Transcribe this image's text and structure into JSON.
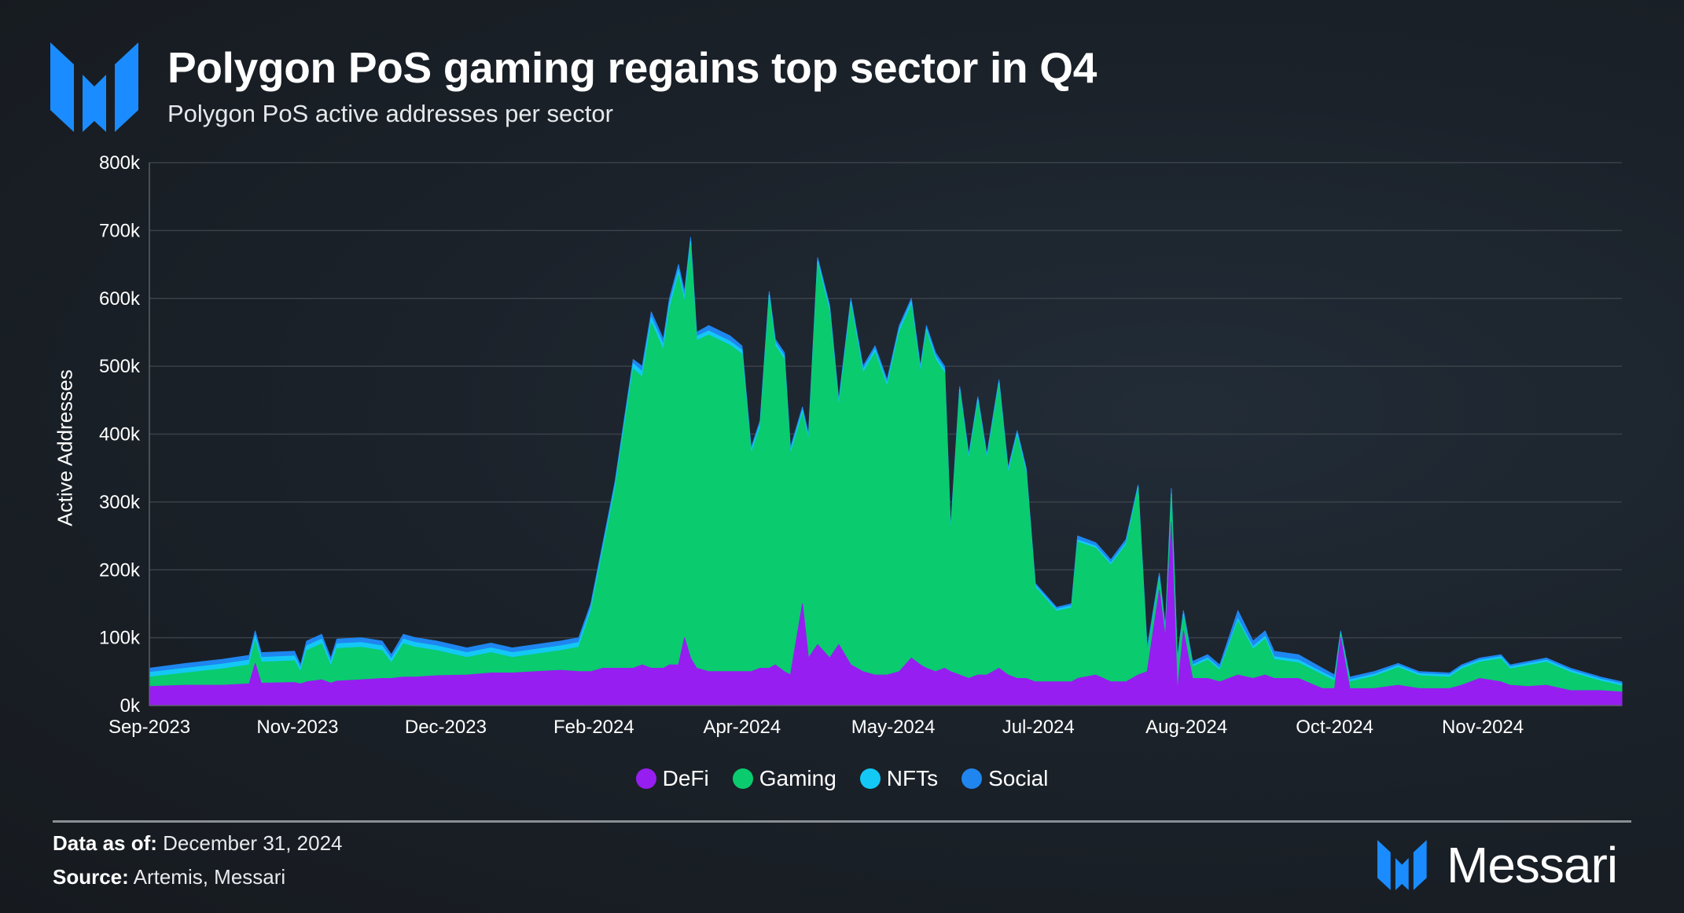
{
  "header": {
    "title": "Polygon PoS gaming regains top sector in Q4",
    "subtitle": "Polygon PoS active addresses per sector",
    "logo_icon": "messari-m-logo",
    "brand_color": "#1a8cff"
  },
  "chart_data": {
    "type": "area",
    "stacked": true,
    "title": "Polygon PoS gaming regains top sector in Q4",
    "subtitle": "Polygon PoS active addresses per sector",
    "xlabel": "",
    "ylabel": "Active Addresses",
    "ylim": [
      0,
      800
    ],
    "yticks": [
      0,
      100,
      200,
      300,
      400,
      500,
      600,
      700,
      800
    ],
    "ytick_labels": [
      "0k",
      "100k",
      "200k",
      "300k",
      "400k",
      "500k",
      "600k",
      "700k",
      "800k"
    ],
    "xlim": [
      "2023-09-01",
      "2024-12-31"
    ],
    "xticks": [
      "2023-09-01",
      "2023-10-20",
      "2023-12-08",
      "2024-01-26",
      "2024-03-15",
      "2024-05-04",
      "2024-06-21",
      "2024-08-09",
      "2024-09-27",
      "2024-11-15"
    ],
    "xtick_labels": [
      "Sep-2023",
      "Nov-2023",
      "Dec-2023",
      "Feb-2024",
      "Apr-2024",
      "May-2024",
      "Jul-2024",
      "Aug-2024",
      "Oct-2024",
      "Nov-2024"
    ],
    "grid": true,
    "legend": "bottom",
    "series_order": [
      "DeFi",
      "Gaming",
      "NFTs",
      "Social"
    ],
    "colors": {
      "DeFi": "#961ef0",
      "Gaming": "#0acb6e",
      "NFTs": "#14c8f5",
      "Social": "#1f86f0"
    },
    "columns": [
      "date",
      "DeFi",
      "Gaming",
      "NFTs",
      "Social"
    ],
    "rows": [
      [
        "2023-09-01",
        28,
        14,
        7,
        6
      ],
      [
        "2023-09-13",
        30,
        18,
        7,
        7
      ],
      [
        "2023-09-25",
        30,
        24,
        7,
        7
      ],
      [
        "2023-10-04",
        32,
        28,
        7,
        7
      ],
      [
        "2023-10-06",
        62,
        34,
        7,
        7
      ],
      [
        "2023-10-08",
        33,
        31,
        7,
        7
      ],
      [
        "2023-10-19",
        34,
        32,
        7,
        7
      ],
      [
        "2023-10-21",
        32,
        18,
        5,
        5
      ],
      [
        "2023-10-23",
        35,
        46,
        7,
        7
      ],
      [
        "2023-10-28",
        38,
        53,
        7,
        7
      ],
      [
        "2023-10-31",
        33,
        25,
        6,
        6
      ],
      [
        "2023-11-02",
        36,
        48,
        7,
        7
      ],
      [
        "2023-11-10",
        38,
        48,
        7,
        7
      ],
      [
        "2023-11-17",
        40,
        41,
        7,
        7
      ],
      [
        "2023-11-20",
        40,
        23,
        6,
        6
      ],
      [
        "2023-11-24",
        42,
        49,
        7,
        7
      ],
      [
        "2023-11-28",
        42,
        44,
        7,
        7
      ],
      [
        "2023-12-05",
        44,
        37,
        7,
        7
      ],
      [
        "2023-12-15",
        45,
        26,
        7,
        7
      ],
      [
        "2023-12-23",
        48,
        30,
        7,
        7
      ],
      [
        "2023-12-30",
        48,
        23,
        7,
        7
      ],
      [
        "2024-01-07",
        50,
        26,
        7,
        7
      ],
      [
        "2024-01-15",
        52,
        29,
        7,
        7
      ],
      [
        "2024-01-21",
        50,
        36,
        7,
        7
      ],
      [
        "2024-01-25",
        50,
        88,
        6,
        6
      ],
      [
        "2024-01-29",
        55,
        173,
        6,
        6
      ],
      [
        "2024-02-02",
        55,
        263,
        6,
        6
      ],
      [
        "2024-02-05",
        55,
        353,
        6,
        6
      ],
      [
        "2024-02-08",
        55,
        441,
        8,
        6
      ],
      [
        "2024-02-11",
        60,
        424,
        8,
        8
      ],
      [
        "2024-02-14",
        55,
        509,
        8,
        8
      ],
      [
        "2024-02-18",
        55,
        469,
        8,
        8
      ],
      [
        "2024-02-20",
        60,
        524,
        8,
        8
      ],
      [
        "2024-02-23",
        60,
        574,
        8,
        8
      ],
      [
        "2024-02-25",
        100,
        494,
        8,
        8
      ],
      [
        "2024-02-27",
        70,
        608,
        6,
        6
      ],
      [
        "2024-02-29",
        55,
        483,
        6,
        6
      ],
      [
        "2024-03-04",
        50,
        496,
        6,
        8
      ],
      [
        "2024-03-11",
        50,
        481,
        6,
        8
      ],
      [
        "2024-03-15",
        50,
        468,
        6,
        6
      ],
      [
        "2024-03-18",
        50,
        321,
        5,
        4
      ],
      [
        "2024-03-21",
        55,
        355,
        5,
        5
      ],
      [
        "2024-03-24",
        55,
        545,
        5,
        5
      ],
      [
        "2024-03-26",
        60,
        470,
        5,
        5
      ],
      [
        "2024-03-29",
        50,
        460,
        5,
        5
      ],
      [
        "2024-03-31",
        45,
        325,
        5,
        5
      ],
      [
        "2024-04-04",
        150,
        280,
        5,
        5
      ],
      [
        "2024-04-06",
        70,
        320,
        5,
        5
      ],
      [
        "2024-04-09",
        90,
        560,
        5,
        5
      ],
      [
        "2024-04-13",
        70,
        510,
        5,
        5
      ],
      [
        "2024-04-16",
        90,
        350,
        5,
        5
      ],
      [
        "2024-04-20",
        60,
        530,
        5,
        5
      ],
      [
        "2024-04-24",
        50,
        440,
        5,
        5
      ],
      [
        "2024-04-28",
        45,
        475,
        5,
        5
      ],
      [
        "2024-05-02",
        45,
        425,
        5,
        5
      ],
      [
        "2024-05-06",
        50,
        500,
        5,
        5
      ],
      [
        "2024-05-10",
        70,
        520,
        5,
        5
      ],
      [
        "2024-05-13",
        60,
        430,
        5,
        5
      ],
      [
        "2024-05-15",
        55,
        495,
        5,
        5
      ],
      [
        "2024-05-18",
        50,
        460,
        5,
        5
      ],
      [
        "2024-05-21",
        55,
        435,
        5,
        5
      ],
      [
        "2024-05-23",
        50,
        202,
        4,
        4
      ],
      [
        "2024-05-26",
        45,
        417,
        4,
        4
      ],
      [
        "2024-05-29",
        40,
        322,
        4,
        4
      ],
      [
        "2024-06-01",
        45,
        402,
        4,
        4
      ],
      [
        "2024-06-04",
        45,
        317,
        4,
        4
      ],
      [
        "2024-06-08",
        55,
        417,
        4,
        4
      ],
      [
        "2024-06-11",
        45,
        297,
        4,
        4
      ],
      [
        "2024-06-14",
        40,
        357,
        4,
        4
      ],
      [
        "2024-06-17",
        40,
        302,
        4,
        4
      ],
      [
        "2024-06-20",
        35,
        139,
        3,
        3
      ],
      [
        "2024-06-27",
        35,
        104,
        3,
        3
      ],
      [
        "2024-07-02",
        35,
        109,
        3,
        3
      ],
      [
        "2024-07-04",
        40,
        201,
        3,
        6
      ],
      [
        "2024-07-10",
        45,
        187,
        3,
        5
      ],
      [
        "2024-07-15",
        35,
        172,
        3,
        5
      ],
      [
        "2024-07-20",
        35,
        202,
        3,
        5
      ],
      [
        "2024-07-24",
        45,
        274,
        3,
        3
      ],
      [
        "2024-07-27",
        50,
        24,
        3,
        8
      ],
      [
        "2024-07-31",
        170,
        17,
        3,
        5
      ],
      [
        "2024-08-02",
        100,
        7,
        3,
        5
      ],
      [
        "2024-08-04",
        270,
        39,
        3,
        8
      ],
      [
        "2024-08-06",
        20,
        42,
        3,
        5
      ],
      [
        "2024-08-08",
        110,
        22,
        3,
        5
      ],
      [
        "2024-08-11",
        40,
        17,
        3,
        5
      ],
      [
        "2024-08-16",
        40,
        27,
        3,
        5
      ],
      [
        "2024-08-20",
        35,
        17,
        3,
        5
      ],
      [
        "2024-08-26",
        45,
        79,
        4,
        12
      ],
      [
        "2024-08-31",
        40,
        43,
        4,
        8
      ],
      [
        "2024-09-04",
        45,
        53,
        4,
        8
      ],
      [
        "2024-09-07",
        40,
        28,
        4,
        8
      ],
      [
        "2024-09-15",
        40,
        23,
        4,
        8
      ],
      [
        "2024-09-23",
        25,
        20,
        4,
        6
      ],
      [
        "2024-09-27",
        25,
        11,
        4,
        5
      ],
      [
        "2024-09-29",
        100,
        5,
        2,
        3
      ],
      [
        "2024-10-02",
        25,
        10,
        3,
        4
      ],
      [
        "2024-10-10",
        25,
        18,
        3,
        4
      ],
      [
        "2024-10-18",
        30,
        26,
        3,
        3
      ],
      [
        "2024-10-25",
        25,
        19,
        3,
        3
      ],
      [
        "2024-11-04",
        25,
        17,
        3,
        3
      ],
      [
        "2024-11-08",
        30,
        24,
        3,
        3
      ],
      [
        "2024-11-14",
        40,
        24,
        3,
        3
      ],
      [
        "2024-11-21",
        35,
        34,
        3,
        3
      ],
      [
        "2024-11-24",
        30,
        24,
        3,
        3
      ],
      [
        "2024-11-30",
        28,
        31,
        3,
        3
      ],
      [
        "2024-12-06",
        30,
        34,
        3,
        3
      ],
      [
        "2024-12-14",
        22,
        27,
        3,
        3
      ],
      [
        "2024-12-24",
        22,
        14,
        3,
        3
      ],
      [
        "2024-12-31",
        20,
        9,
        3,
        3
      ]
    ]
  },
  "legend": [
    {
      "label": "DeFi",
      "color": "#961ef0"
    },
    {
      "label": "Gaming",
      "color": "#0acb6e"
    },
    {
      "label": "NFTs",
      "color": "#14c8f5"
    },
    {
      "label": "Social",
      "color": "#1f86f0"
    }
  ],
  "footer": {
    "data_as_of_label": "Data as of:",
    "data_as_of_value": "December 31, 2024",
    "source_label": "Source:",
    "source_value": "Artemis, Messari",
    "brand_name": "Messari"
  }
}
